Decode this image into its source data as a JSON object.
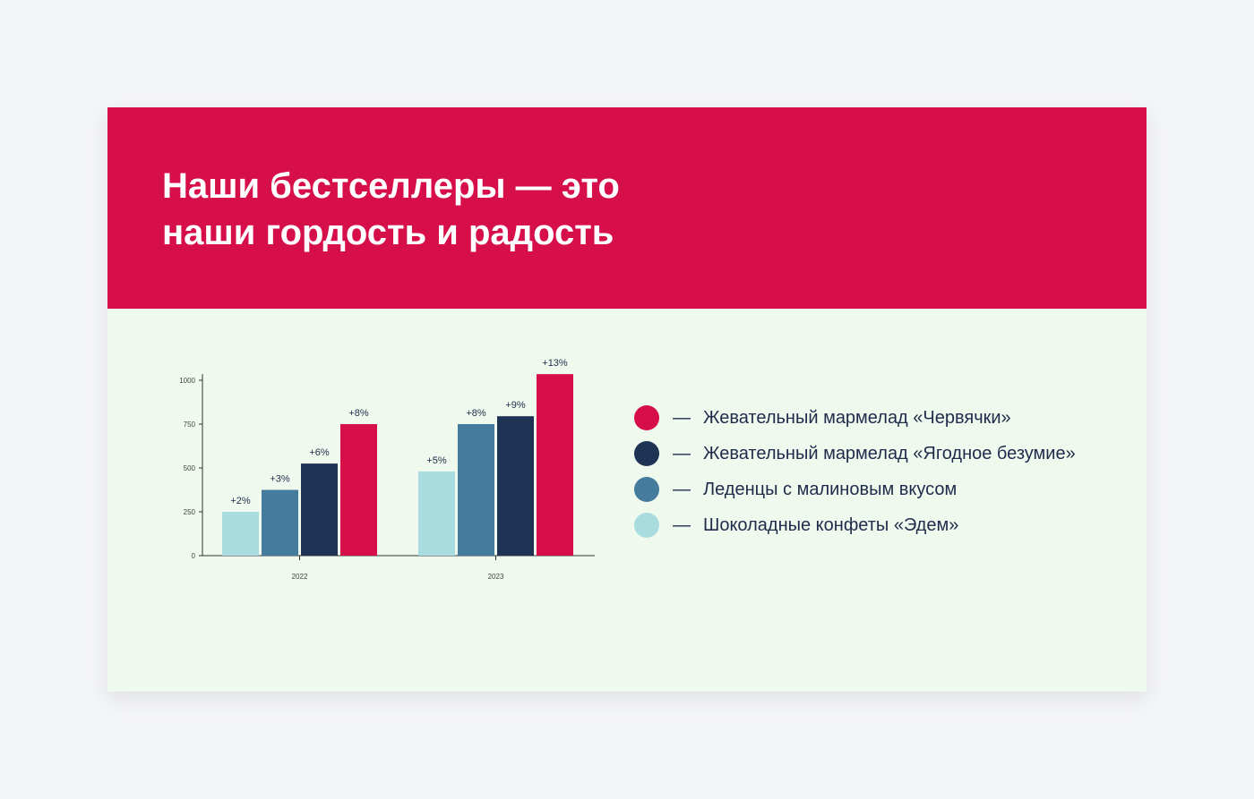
{
  "title_lines": [
    "Наши бестселлеры — это",
    "наши гордость и радость"
  ],
  "colors": {
    "header_bg": "#d60e4a",
    "body_bg": "#eff9ee",
    "page_bg": "#f4f5f8",
    "text_dark": "#1f2b4a"
  },
  "legend": {
    "dash": "—"
  },
  "chart_data": {
    "type": "bar",
    "categories": [
      "2022",
      "2023"
    ],
    "yticks": [
      "0",
      "250",
      "500",
      "750",
      "1000"
    ],
    "ylim": [
      0,
      1000
    ],
    "grid": false,
    "legend_position": "right",
    "series": [
      {
        "name": "Шоколадные конфеты «Эдем»",
        "color": "#a9dcdf",
        "values": [
          250,
          480
        ],
        "labels": [
          "+2%",
          "+5%"
        ]
      },
      {
        "name": "Леденцы с малиновым вкусом",
        "color": "#457b9d",
        "values": [
          375,
          750
        ],
        "labels": [
          "+3%",
          "+8%"
        ]
      },
      {
        "name": "Жевательный мармелад «Ягодное безумие»",
        "color": "#1f3354",
        "values": [
          525,
          795
        ],
        "labels": [
          "+6%",
          "+9%"
        ]
      },
      {
        "name": "Жевательный мармелад «Червячки»",
        "color": "#d60e4a",
        "values": [
          750,
          1035
        ],
        "labels": [
          "+8%",
          "+13%"
        ]
      }
    ],
    "legend_order": [
      3,
      2,
      1,
      0
    ]
  }
}
